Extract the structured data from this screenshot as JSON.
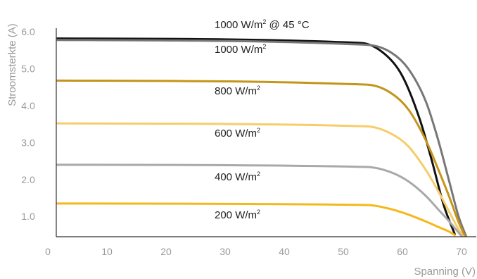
{
  "chart_data": {
    "type": "line",
    "xlabel": "Spanning (V)",
    "ylabel": "Stroomsterkte (A)",
    "xlim": [
      0,
      72
    ],
    "ylim": [
      0.45,
      6.1
    ],
    "x_ticks": [
      "0",
      "10",
      "20",
      "30",
      "40",
      "50",
      "60",
      "70"
    ],
    "y_ticks": [
      "1.0",
      "2.0",
      "3.0",
      "4.0",
      "5.0",
      "6.0"
    ],
    "grid": false,
    "series": [
      {
        "name": "1000 W/m² @ 45 °C",
        "label_base": "1000 W/m",
        "label_sup": "2",
        "label_tail": " @ 45 °C",
        "color": "#111111",
        "x": [
          1.5,
          53,
          57,
          60,
          63,
          65,
          67,
          68.9
        ],
        "y": [
          5.82,
          5.7,
          5.4,
          4.8,
          3.6,
          2.5,
          1.3,
          0.5
        ]
      },
      {
        "name": "1000 W/m²",
        "label_base": "1000 W/m",
        "label_sup": "2",
        "label_tail": "",
        "color": "#777777",
        "x": [
          1.5,
          54,
          58,
          61,
          64,
          66,
          68,
          69.5,
          70.8
        ],
        "y": [
          5.78,
          5.65,
          5.45,
          5.0,
          4.1,
          3.1,
          1.9,
          1.0,
          0.45
        ]
      },
      {
        "name": "800 W/m²",
        "label_base": "800 W/m",
        "label_sup": "2",
        "label_tail": "",
        "color": "#c4951a",
        "x": [
          1.5,
          54,
          58,
          61,
          64,
          66,
          68,
          69.5,
          70.6
        ],
        "y": [
          4.68,
          4.57,
          4.35,
          3.9,
          3.05,
          2.3,
          1.5,
          0.85,
          0.45
        ]
      },
      {
        "name": "600 W/m²",
        "label_base": "600 W/m",
        "label_sup": "2",
        "label_tail": "",
        "color": "#f7cd6a",
        "x": [
          1.5,
          54,
          58,
          61,
          64,
          66,
          68,
          69.5,
          70.3
        ],
        "y": [
          3.52,
          3.44,
          3.25,
          2.9,
          2.25,
          1.7,
          1.1,
          0.65,
          0.45
        ]
      },
      {
        "name": "400 W/m²",
        "label_base": "400 W/m",
        "label_sup": "2",
        "label_tail": "",
        "color": "#a9a9a9",
        "x": [
          1.5,
          54,
          58,
          61,
          64,
          66,
          68,
          69.3,
          70.1
        ],
        "y": [
          2.4,
          2.34,
          2.2,
          1.95,
          1.55,
          1.2,
          0.85,
          0.6,
          0.45
        ]
      },
      {
        "name": "200 W/m²",
        "label_base": "200 W/m",
        "label_sup": "2",
        "label_tail": "",
        "color": "#f5b81a",
        "x": [
          1.5,
          54,
          58,
          61,
          64,
          66,
          68,
          69.0
        ],
        "y": [
          1.35,
          1.31,
          1.2,
          1.05,
          0.86,
          0.72,
          0.58,
          0.48
        ]
      }
    ]
  }
}
